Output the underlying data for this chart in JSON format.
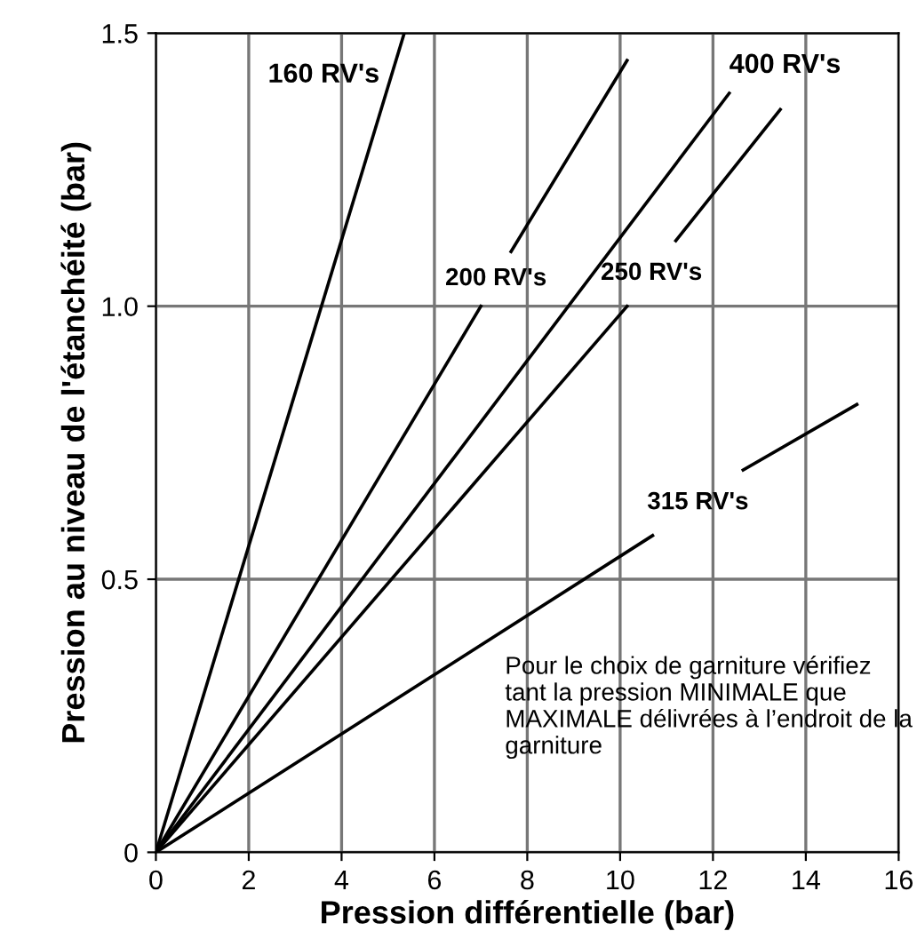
{
  "chart_data": {
    "type": "line",
    "xlabel": "Pression différentielle (bar)",
    "ylabel": "Pression au niveau de l'étanchéité (bar)",
    "series": [
      {
        "name": "160 RV's",
        "color": "#000000",
        "x": [
          0,
          5.35
        ],
        "values": [
          0,
          1.5
        ]
      },
      {
        "name": "200 RV's",
        "color": "#000000",
        "x": [
          0,
          7.0
        ],
        "values": [
          0,
          1.0
        ]
      },
      {
        "color": "#000000",
        "x": [
          7.65,
          10.15
        ],
        "values": [
          1.1,
          1.45
        ]
      },
      {
        "name": "400 RV's",
        "color": "#000000",
        "x": [
          0,
          12.35
        ],
        "values": [
          0,
          1.39
        ]
      },
      {
        "name": "250 RV's",
        "color": "#000000",
        "x": [
          0,
          10.15
        ],
        "values": [
          0,
          1.0
        ]
      },
      {
        "color": "#000000",
        "x": [
          11.2,
          13.45
        ],
        "values": [
          1.12,
          1.36
        ]
      },
      {
        "name": "315 RV's",
        "color": "#000000",
        "x": [
          0,
          10.7
        ],
        "values": [
          0,
          0.58
        ]
      },
      {
        "color": "#000000",
        "x": [
          12.65,
          15.1
        ],
        "values": [
          0.7,
          0.82
        ]
      }
    ],
    "xlim": [
      0,
      16
    ],
    "ylim": [
      0,
      1.5
    ],
    "xticks": [
      0,
      2,
      4,
      6,
      8,
      10,
      12,
      14,
      16
    ],
    "yticks": [
      0,
      0.5,
      {
        "value": 1.0,
        "label": "1.0"
      },
      1.5
    ],
    "grid": true,
    "legend": false,
    "marker": "none",
    "line_style": "solid",
    "annotations": [
      "Pour le choix de garniture vérifiez tant la pression MINIMALE que MAXIMALE délivrées à l’endroit de la garniture"
    ]
  }
}
